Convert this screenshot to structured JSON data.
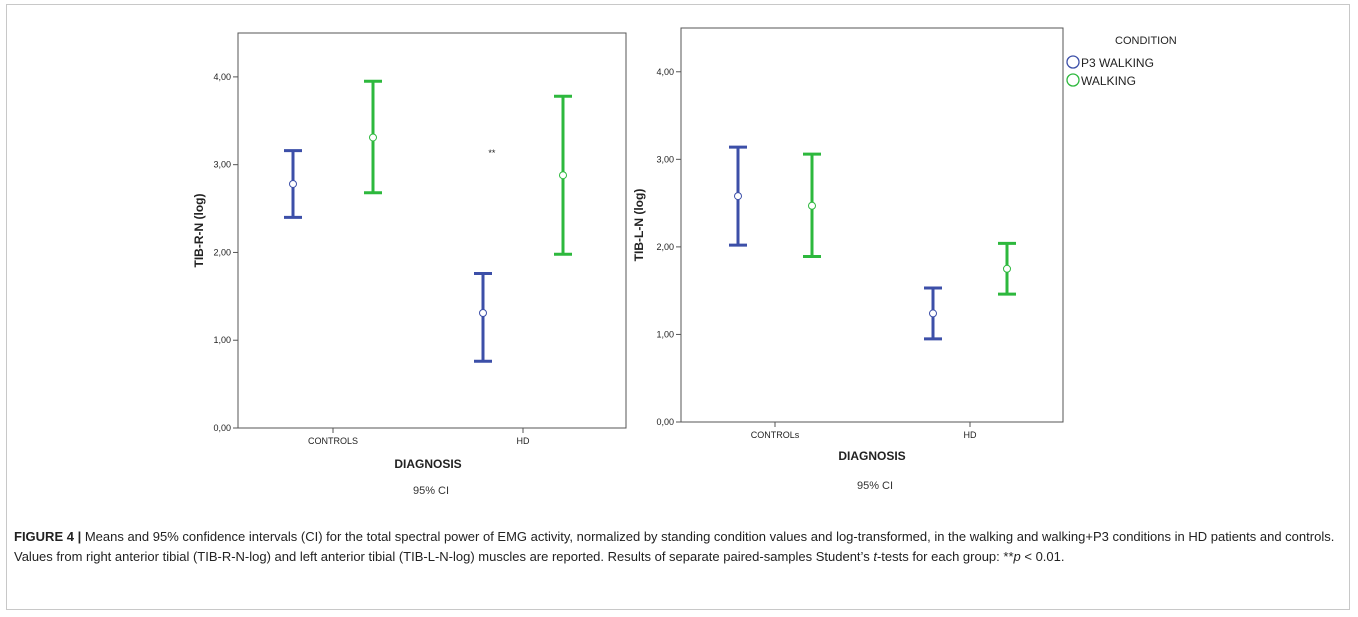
{
  "chart_data": [
    {
      "type": "errorbar",
      "xlabel": "DIAGNOSIS",
      "ylabel": "TIB-R-N (log)",
      "note": "95% CI",
      "categories": [
        "CONTROLS",
        "HD"
      ],
      "ylim": [
        0,
        4.5
      ],
      "yticks": [
        "0,00",
        "1,00",
        "2,00",
        "3,00",
        "4,00"
      ],
      "annotation": "**",
      "series": [
        {
          "name": "P3 WALKING",
          "color": "#3c4fa8",
          "mean": [
            2.78,
            1.31
          ],
          "lower": [
            2.4,
            0.76
          ],
          "upper": [
            3.16,
            1.76
          ]
        },
        {
          "name": "WALKING",
          "color": "#2db83d",
          "mean": [
            3.31,
            2.88
          ],
          "lower": [
            2.68,
            1.98
          ],
          "upper": [
            3.95,
            3.78
          ]
        }
      ]
    },
    {
      "type": "errorbar",
      "xlabel": "DIAGNOSIS",
      "ylabel": "TIB-L-N (log)",
      "note": "95% CI",
      "categories": [
        "CONTROLs",
        "HD"
      ],
      "ylim": [
        0,
        4.5
      ],
      "yticks": [
        "0,00",
        "1,00",
        "2,00",
        "3,00",
        "4,00"
      ],
      "annotation": "",
      "series": [
        {
          "name": "P3 WALKING",
          "color": "#3c4fa8",
          "mean": [
            2.58,
            1.24
          ],
          "lower": [
            2.02,
            0.95
          ],
          "upper": [
            3.14,
            1.53
          ]
        },
        {
          "name": "WALKING",
          "color": "#2db83d",
          "mean": [
            2.47,
            1.75
          ],
          "lower": [
            1.89,
            1.46
          ],
          "upper": [
            3.06,
            2.04
          ]
        }
      ]
    }
  ],
  "legend": {
    "title": "CONDITION",
    "items": [
      {
        "label": "P3 WALKING",
        "color": "#3c4fa8"
      },
      {
        "label": "WALKING",
        "color": "#2db83d"
      }
    ]
  },
  "caption": {
    "label": "FIGURE 4 |",
    "text_1": " Means and 95% confidence intervals (CI) for the total spectral power of EMG activity, normalized by standing condition values and log-transformed, in the walking and walking+P3 conditions in HD patients and controls. Values from right anterior tibial (TIB-R-N-log) and left anterior tibial (TIB-L-N-log) muscles are reported. Results of separate paired-samples Student’s ",
    "t_italic": "t",
    "text_2": "-tests for each group: **",
    "p_italic": "p",
    "text_3": " < 0.01."
  }
}
